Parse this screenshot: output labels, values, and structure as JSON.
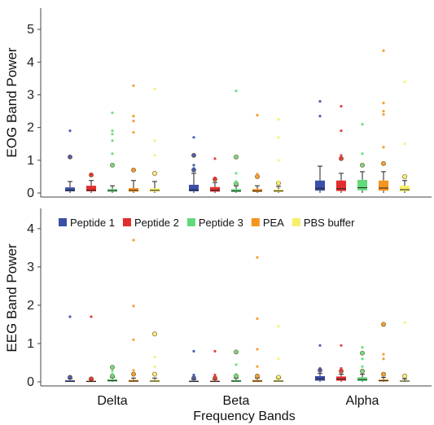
{
  "chart_data": {
    "type": "box",
    "x_label": "Frequency Bands",
    "categories": [
      "Delta",
      "Beta",
      "Alpha"
    ],
    "groups": [
      "Peptide 1",
      "Peptide 2",
      "Peptide 3",
      "PEA",
      "PBS buffer"
    ],
    "colors": [
      "#3a4fa8",
      "#e12d2d",
      "#63d97a",
      "#f59420",
      "#f7ef6a"
    ],
    "legend_position": "top of lower panel",
    "panels": [
      {
        "ylabel": "EOG Band Power",
        "ylim": [
          0,
          5.6
        ],
        "yticks": [
          0,
          1,
          2,
          3,
          4,
          5
        ],
        "boxes": [
          [
            {
              "q1": 0.05,
              "med": 0.08,
              "q3": 0.17,
              "wl": 0.0,
              "wh": 0.35,
              "outliers": [
                1.1,
                1.9
              ]
            },
            {
              "q1": 0.05,
              "med": 0.08,
              "q3": 0.22,
              "wl": 0.0,
              "wh": 0.38,
              "outliers": [
                0.55,
                0.58
              ]
            },
            {
              "q1": 0.04,
              "med": 0.07,
              "q3": 0.12,
              "wl": 0.0,
              "wh": 0.22,
              "outliers": [
                0.85,
                1.2,
                1.6,
                1.8,
                1.9,
                2.45
              ]
            },
            {
              "q1": 0.04,
              "med": 0.08,
              "q3": 0.15,
              "wl": 0.0,
              "wh": 0.38,
              "outliers": [
                0.7,
                0.72,
                1.85,
                2.2,
                2.35,
                3.28
              ]
            },
            {
              "q1": 0.04,
              "med": 0.08,
              "q3": 0.14,
              "wl": 0.0,
              "wh": 0.35,
              "outliers": [
                0.6,
                1.15,
                1.6,
                3.18
              ]
            }
          ],
          [
            {
              "q1": 0.05,
              "med": 0.09,
              "q3": 0.25,
              "wl": 0.0,
              "wh": 0.6,
              "outliers": [
                0.7,
                0.75,
                0.85,
                1.15,
                1.7
              ]
            },
            {
              "q1": 0.04,
              "med": 0.08,
              "q3": 0.18,
              "wl": 0.0,
              "wh": 0.32,
              "outliers": [
                0.42,
                0.46,
                1.05
              ]
            },
            {
              "q1": 0.03,
              "med": 0.06,
              "q3": 0.12,
              "wl": 0.0,
              "wh": 0.22,
              "outliers": [
                0.28,
                0.35,
                0.6,
                1.1,
                3.12
              ]
            },
            {
              "q1": 0.03,
              "med": 0.06,
              "q3": 0.12,
              "wl": 0.0,
              "wh": 0.22,
              "outliers": [
                0.5,
                0.58,
                2.38
              ]
            },
            {
              "q1": 0.03,
              "med": 0.06,
              "q3": 0.11,
              "wl": 0.0,
              "wh": 0.2,
              "outliers": [
                0.3,
                0.35,
                1.0,
                1.7,
                2.25
              ]
            }
          ],
          [
            {
              "q1": 0.07,
              "med": 0.14,
              "q3": 0.38,
              "wl": 0.0,
              "wh": 0.82,
              "outliers": [
                2.35,
                2.8
              ]
            },
            {
              "q1": 0.06,
              "med": 0.13,
              "q3": 0.38,
              "wl": 0.0,
              "wh": 0.6,
              "outliers": [
                1.05,
                1.15,
                1.9,
                2.65
              ]
            },
            {
              "q1": 0.08,
              "med": 0.16,
              "q3": 0.4,
              "wl": 0.0,
              "wh": 0.65,
              "outliers": [
                0.85,
                1.2,
                2.1
              ]
            },
            {
              "q1": 0.07,
              "med": 0.15,
              "q3": 0.38,
              "wl": 0.0,
              "wh": 0.65,
              "outliers": [
                0.9,
                1.4,
                2.4,
                2.5,
                2.75,
                4.35
              ]
            },
            {
              "q1": 0.05,
              "med": 0.1,
              "q3": 0.22,
              "wl": 0.0,
              "wh": 0.38,
              "outliers": [
                0.5,
                0.52,
                1.5,
                3.4
              ]
            }
          ]
        ]
      },
      {
        "ylabel": "EEG Band Power",
        "ylim": [
          0,
          4.4
        ],
        "yticks": [
          0,
          1,
          2,
          3,
          4
        ],
        "boxes": [
          [
            {
              "q1": 0.0,
              "med": 0.01,
              "q3": 0.04,
              "wl": 0.0,
              "wh": 0.08,
              "outliers": [
                0.12,
                1.7
              ]
            },
            {
              "q1": 0.0,
              "med": 0.01,
              "q3": 0.03,
              "wl": 0.0,
              "wh": 0.06,
              "outliers": [
                0.08,
                1.7
              ]
            },
            {
              "q1": 0.01,
              "med": 0.03,
              "q3": 0.07,
              "wl": 0.0,
              "wh": 0.12,
              "outliers": [
                0.15,
                0.2,
                0.28,
                0.38
              ]
            },
            {
              "q1": 0.0,
              "med": 0.02,
              "q3": 0.05,
              "wl": 0.0,
              "wh": 0.1,
              "outliers": [
                0.2,
                0.3,
                1.1,
                1.98,
                3.7
              ]
            },
            {
              "q1": 0.0,
              "med": 0.02,
              "q3": 0.05,
              "wl": 0.0,
              "wh": 0.1,
              "outliers": [
                0.2,
                0.4,
                0.65,
                1.25
              ]
            }
          ],
          [
            {
              "q1": 0.0,
              "med": 0.01,
              "q3": 0.03,
              "wl": 0.0,
              "wh": 0.06,
              "outliers": [
                0.1,
                0.18,
                0.8
              ]
            },
            {
              "q1": 0.0,
              "med": 0.01,
              "q3": 0.03,
              "wl": 0.0,
              "wh": 0.06,
              "outliers": [
                0.1,
                0.18,
                0.8
              ]
            },
            {
              "q1": 0.0,
              "med": 0.02,
              "q3": 0.05,
              "wl": 0.0,
              "wh": 0.1,
              "outliers": [
                0.15,
                0.2,
                0.45,
                0.78
              ]
            },
            {
              "q1": 0.0,
              "med": 0.02,
              "q3": 0.05,
              "wl": 0.0,
              "wh": 0.1,
              "outliers": [
                0.15,
                0.4,
                0.85,
                1.65,
                3.25
              ]
            },
            {
              "q1": 0.0,
              "med": 0.02,
              "q3": 0.05,
              "wl": 0.0,
              "wh": 0.1,
              "outliers": [
                0.12,
                0.6,
                1.45
              ]
            }
          ],
          [
            {
              "q1": 0.03,
              "med": 0.08,
              "q3": 0.15,
              "wl": 0.0,
              "wh": 0.22,
              "outliers": [
                0.3,
                0.35,
                0.95
              ]
            },
            {
              "q1": 0.03,
              "med": 0.07,
              "q3": 0.14,
              "wl": 0.0,
              "wh": 0.2,
              "outliers": [
                0.28,
                0.35,
                0.95
              ]
            },
            {
              "q1": 0.02,
              "med": 0.06,
              "q3": 0.12,
              "wl": 0.0,
              "wh": 0.2,
              "outliers": [
                0.28,
                0.4,
                0.6,
                0.75,
                0.9
              ]
            },
            {
              "q1": 0.01,
              "med": 0.03,
              "q3": 0.06,
              "wl": 0.0,
              "wh": 0.12,
              "outliers": [
                0.2,
                0.6,
                0.72,
                1.5
              ]
            },
            {
              "q1": 0.01,
              "med": 0.02,
              "q3": 0.04,
              "wl": 0.0,
              "wh": 0.08,
              "outliers": [
                0.15,
                1.55
              ]
            }
          ]
        ]
      }
    ]
  }
}
